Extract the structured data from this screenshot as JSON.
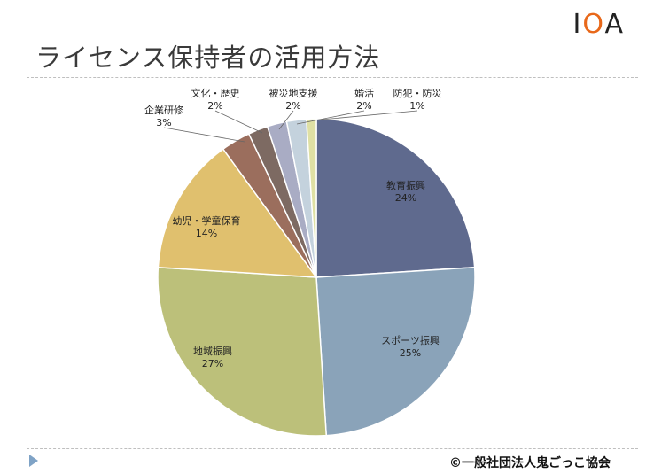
{
  "title": "ライセンス保持者の活用方法",
  "logo": {
    "text_1": "I",
    "text_2": "O",
    "text_3": "A"
  },
  "copyright": "©一般社団法人鬼ごっこ協会",
  "chart_data": {
    "type": "pie",
    "start_angle_deg": 0,
    "direction": "clockwise",
    "slices": [
      {
        "label": "教育振興",
        "percent_label": "24%",
        "value": 24,
        "color": "#5f6a8e"
      },
      {
        "label": "スポーツ振興",
        "percent_label": "25%",
        "value": 25,
        "color": "#8aa3b9"
      },
      {
        "label": "地域振興",
        "percent_label": "27%",
        "value": 27,
        "color": "#bcc07a"
      },
      {
        "label": "幼児・学童保育",
        "percent_label": "14%",
        "value": 14,
        "color": "#e0c06e"
      },
      {
        "label": "企業研修",
        "percent_label": "3%",
        "value": 3,
        "color": "#9b6e5d"
      },
      {
        "label": "文化・歴史",
        "percent_label": "2%",
        "value": 2,
        "color": "#7d6a62"
      },
      {
        "label": "被災地支援",
        "percent_label": "2%",
        "value": 2,
        "color": "#a9acc4"
      },
      {
        "label": "婚活",
        "percent_label": "2%",
        "value": 2,
        "color": "#c4d2dd"
      },
      {
        "label": "防犯・防災",
        "percent_label": "1%",
        "value": 1,
        "color": "#dfe0a4"
      }
    ]
  }
}
